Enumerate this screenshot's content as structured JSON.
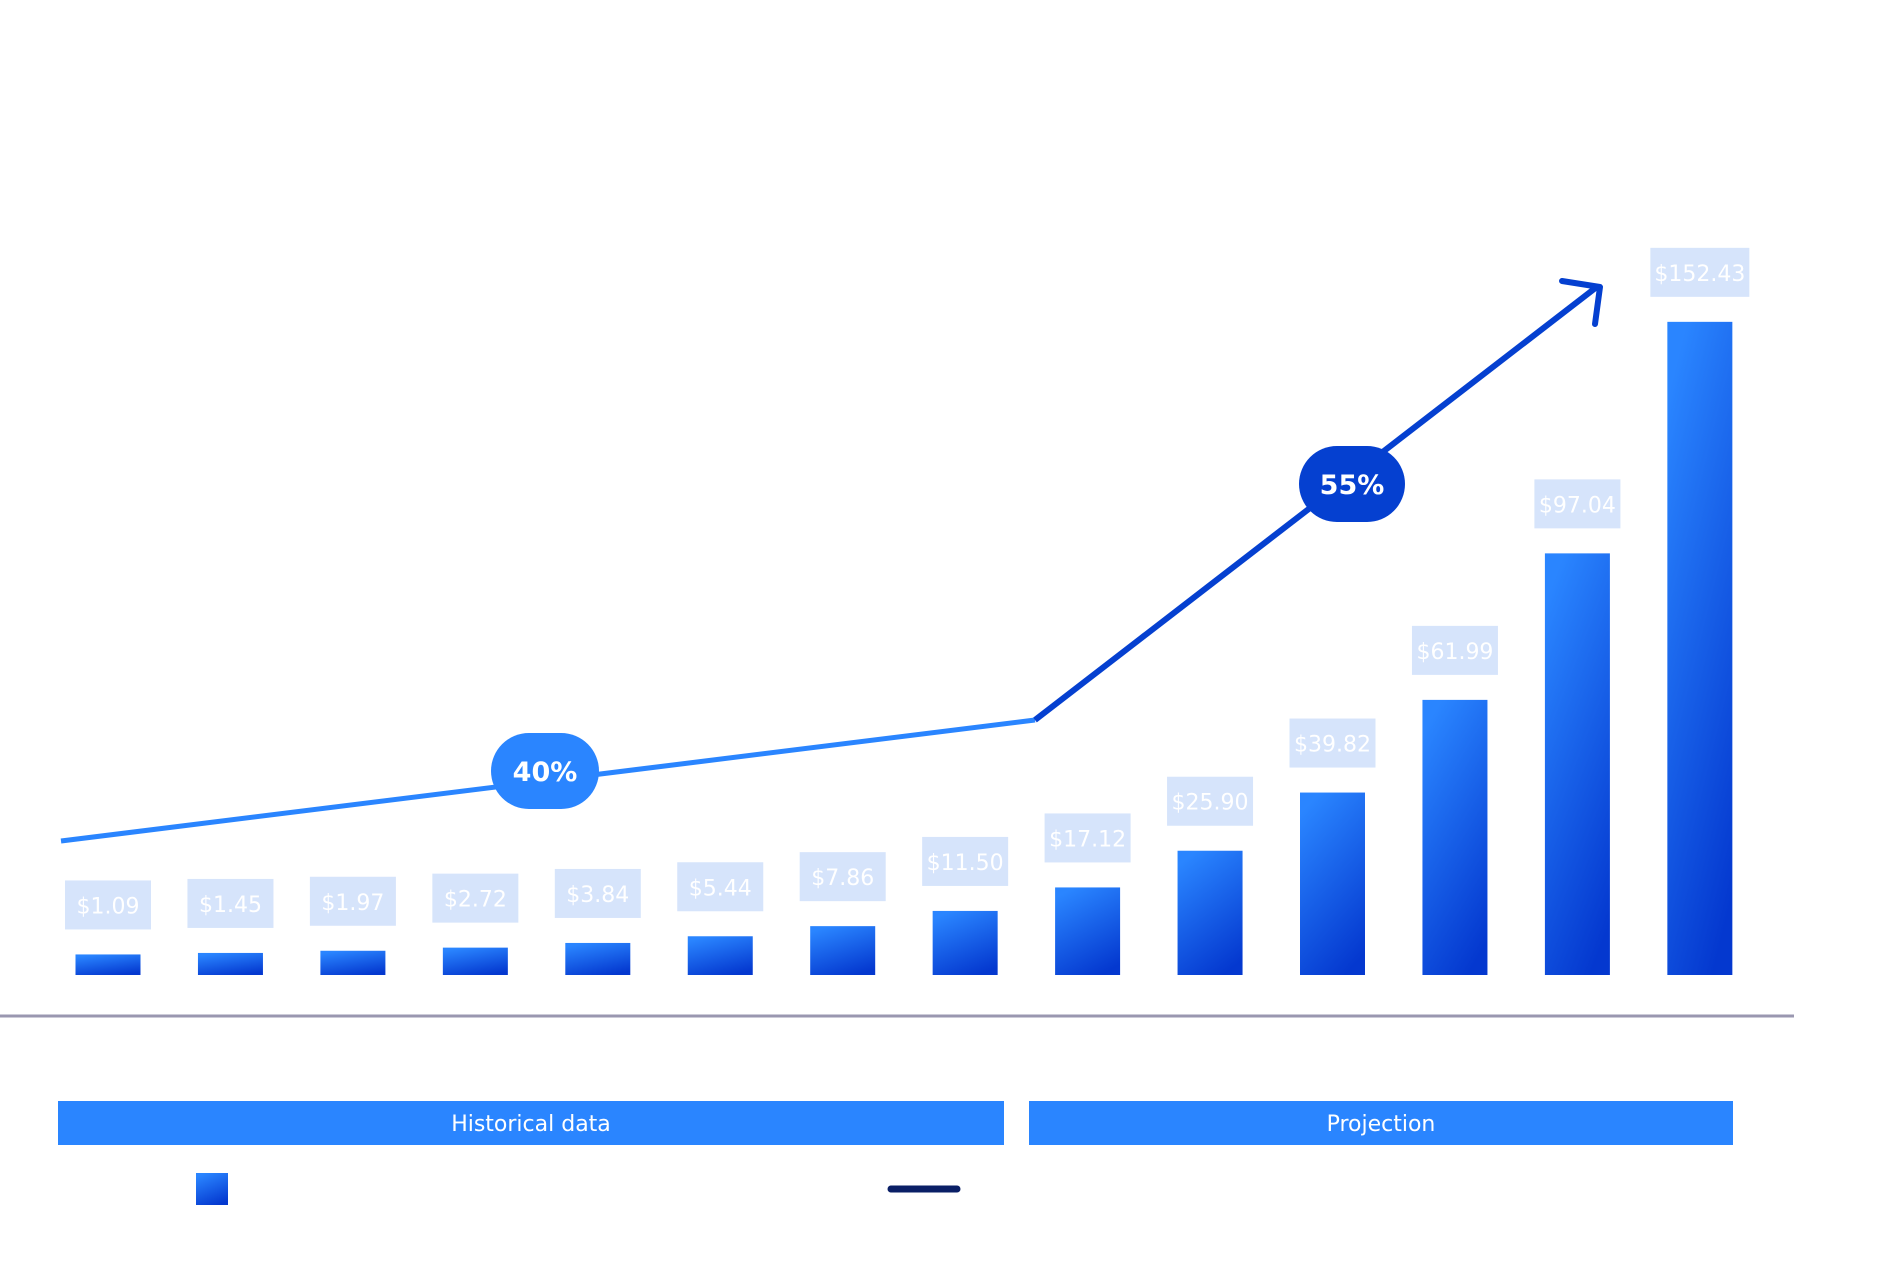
{
  "chart_data": {
    "type": "bar",
    "title": "",
    "xlabel": "",
    "ylabel": "",
    "values": [
      1.09,
      1.45,
      1.97,
      2.72,
      3.84,
      5.44,
      7.86,
      11.5,
      17.12,
      25.9,
      39.82,
      61.99,
      97.04,
      152.43
    ],
    "value_labels": [
      "$1.09",
      "$1.45",
      "$1.97",
      "$2.72",
      "$3.84",
      "$5.44",
      "$7.86",
      "$11.50",
      "$17.12",
      "$25.90",
      "$39.82",
      "$61.99",
      "$97.04",
      "$152.43"
    ],
    "grid": false,
    "segments": [
      {
        "label": "Historical data",
        "from_index": 0,
        "to_index": 7
      },
      {
        "label": "Projection",
        "from_index": 8,
        "to_index": 13
      }
    ],
    "growth_annotations": [
      {
        "label": "40%",
        "segment": "Historical data",
        "color": "#2a85ff"
      },
      {
        "label": "55%",
        "segment": "Projection",
        "color": "#0540d0"
      }
    ],
    "legend": {
      "placement": "bottom",
      "entries": [
        {
          "marker": "bar"
        },
        {
          "marker": "line"
        }
      ]
    }
  },
  "colors": {
    "bar_top": "#2a85ff",
    "bar_bottom": "#0438cf",
    "label_bg": "#d6e4fb",
    "trend_historical": "#2a85ff",
    "trend_projection": "#0540d0",
    "segment_band": "#2a85ff",
    "axis": "#9a97b0",
    "legend_line": "#0a1f66"
  }
}
